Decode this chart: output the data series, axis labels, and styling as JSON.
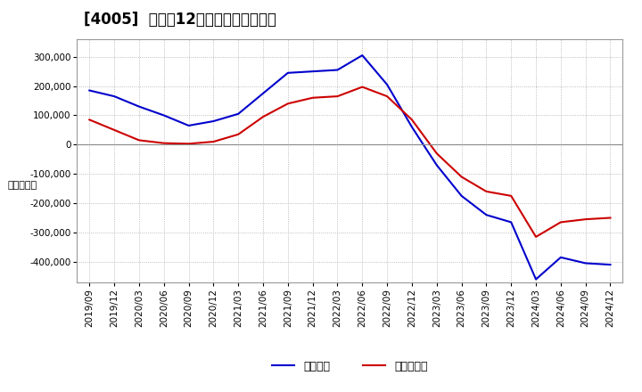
{
  "title": "[4005]  利益の12か月移動合計の推移",
  "ylabel": "（百万円）",
  "background_color": "#ffffff",
  "plot_bg_color": "#ffffff",
  "grid_color": "#aaaaaa",
  "x_labels": [
    "2019/09",
    "2019/12",
    "2020/03",
    "2020/06",
    "2020/09",
    "2020/12",
    "2021/03",
    "2021/06",
    "2021/09",
    "2021/12",
    "2022/03",
    "2022/06",
    "2022/09",
    "2022/12",
    "2023/03",
    "2023/06",
    "2023/09",
    "2023/12",
    "2024/03",
    "2024/06",
    "2024/09",
    "2024/12"
  ],
  "keijo_rieki": [
    185000,
    165000,
    130000,
    100000,
    65000,
    80000,
    105000,
    175000,
    245000,
    250000,
    255000,
    305000,
    205000,
    60000,
    -70000,
    -175000,
    -240000,
    -265000,
    -460000,
    -385000,
    -405000,
    -410000
  ],
  "touki_junrieki": [
    85000,
    50000,
    15000,
    5000,
    3000,
    10000,
    35000,
    95000,
    140000,
    160000,
    165000,
    197000,
    165000,
    85000,
    -30000,
    -110000,
    -160000,
    -175000,
    -315000,
    -265000,
    -255000,
    -250000
  ],
  "keijo_color": "#0000cc",
  "touji_color": "#cc0000",
  "ylim_min": -470000,
  "ylim_max": 360000,
  "yticks": [
    -400000,
    -300000,
    -200000,
    -100000,
    0,
    100000,
    200000,
    300000
  ],
  "legend_keijo": "経常利益",
  "legend_touji": "当期純利益",
  "line_width": 1.5,
  "title_fontsize": 12,
  "tick_fontsize": 7.5,
  "ylabel_fontsize": 8
}
